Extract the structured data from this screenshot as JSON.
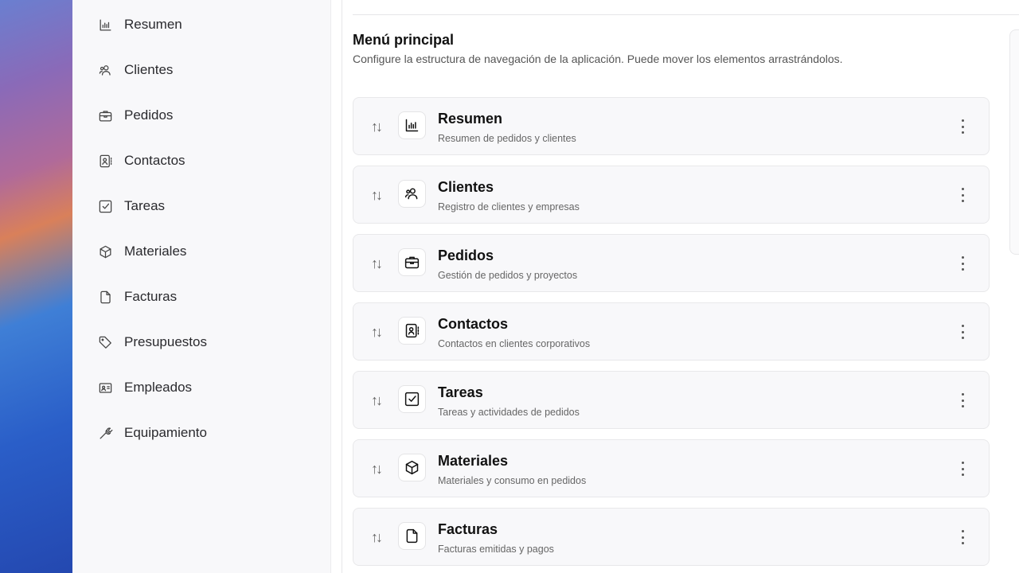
{
  "sidebar": {
    "items": [
      {
        "label": "Resumen",
        "icon": "chart-icon"
      },
      {
        "label": "Clientes",
        "icon": "users-icon"
      },
      {
        "label": "Pedidos",
        "icon": "briefcase-icon"
      },
      {
        "label": "Contactos",
        "icon": "contact-book-icon"
      },
      {
        "label": "Tareas",
        "icon": "checkbox-icon"
      },
      {
        "label": "Materiales",
        "icon": "box-icon"
      },
      {
        "label": "Facturas",
        "icon": "file-icon"
      },
      {
        "label": "Presupuestos",
        "icon": "tag-icon"
      },
      {
        "label": "Empleados",
        "icon": "id-card-icon"
      },
      {
        "label": "Equipamiento",
        "icon": "wrench-icon"
      }
    ]
  },
  "main": {
    "title": "Menú principal",
    "description": "Configure la estructura de navegación de la aplicación. Puede mover los elementos arrastrándolos.",
    "items": [
      {
        "title": "Resumen",
        "subtitle": "Resumen de pedidos y clientes",
        "icon": "chart-icon"
      },
      {
        "title": "Clientes",
        "subtitle": "Registro de clientes y empresas",
        "icon": "users-icon"
      },
      {
        "title": "Pedidos",
        "subtitle": "Gestión de pedidos y proyectos",
        "icon": "briefcase-icon"
      },
      {
        "title": "Contactos",
        "subtitle": "Contactos en clientes corporativos",
        "icon": "contact-book-icon"
      },
      {
        "title": "Tareas",
        "subtitle": "Tareas y actividades de pedidos",
        "icon": "checkbox-icon"
      },
      {
        "title": "Materiales",
        "subtitle": "Materiales y consumo en pedidos",
        "icon": "box-icon"
      },
      {
        "title": "Facturas",
        "subtitle": "Facturas emitidas y pagos",
        "icon": "file-icon"
      }
    ]
  }
}
